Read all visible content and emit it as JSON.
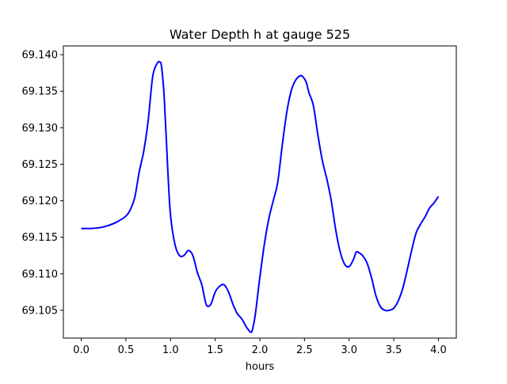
{
  "chart_data": {
    "type": "line",
    "title": "Water Depth h at gauge 525",
    "xlabel": "hours",
    "ylabel": "",
    "xlim": [
      -0.2,
      4.2
    ],
    "ylim": [
      69.1012,
      69.1412
    ],
    "xticks": [
      0.0,
      0.5,
      1.0,
      1.5,
      2.0,
      2.5,
      3.0,
      3.5,
      4.0
    ],
    "xtick_labels": [
      "0.0",
      "0.5",
      "1.0",
      "1.5",
      "2.0",
      "2.5",
      "3.0",
      "3.5",
      "4.0"
    ],
    "yticks": [
      69.105,
      69.11,
      69.115,
      69.12,
      69.125,
      69.13,
      69.135,
      69.14
    ],
    "ytick_labels": [
      "69.105",
      "69.110",
      "69.115",
      "69.120",
      "69.125",
      "69.130",
      "69.135",
      "69.140"
    ],
    "grid": false,
    "series": [
      {
        "color": "#0000ff",
        "x": [
          0.0,
          0.1,
          0.2,
          0.3,
          0.4,
          0.5,
          0.55,
          0.6,
          0.65,
          0.7,
          0.75,
          0.8,
          0.85,
          0.88,
          0.9,
          0.93,
          0.97,
          1.0,
          1.05,
          1.1,
          1.15,
          1.2,
          1.25,
          1.3,
          1.35,
          1.4,
          1.45,
          1.5,
          1.55,
          1.6,
          1.65,
          1.7,
          1.75,
          1.8,
          1.85,
          1.9,
          1.92,
          1.95,
          2.0,
          2.05,
          2.1,
          2.15,
          2.2,
          2.25,
          2.3,
          2.35,
          2.4,
          2.45,
          2.48,
          2.52,
          2.55,
          2.6,
          2.65,
          2.7,
          2.75,
          2.8,
          2.85,
          2.9,
          2.95,
          3.0,
          3.05,
          3.08,
          3.12,
          3.15,
          3.2,
          3.25,
          3.3,
          3.35,
          3.4,
          3.45,
          3.5,
          3.55,
          3.6,
          3.65,
          3.7,
          3.75,
          3.8,
          3.85,
          3.9,
          3.95,
          4.0
        ],
        "y": [
          69.1162,
          69.1162,
          69.1163,
          69.1166,
          69.1171,
          69.1179,
          69.1188,
          69.1205,
          69.124,
          69.1268,
          69.131,
          69.137,
          69.1388,
          69.139,
          69.1383,
          69.134,
          69.124,
          69.118,
          69.114,
          69.1125,
          69.1125,
          69.1132,
          69.1125,
          69.1102,
          69.1085,
          69.1058,
          69.1058,
          69.1075,
          69.1083,
          69.1085,
          69.1075,
          69.1058,
          69.1045,
          69.1038,
          69.1027,
          69.102,
          69.1025,
          69.1045,
          69.1095,
          69.114,
          69.1175,
          69.12,
          69.1225,
          69.1275,
          69.132,
          69.135,
          69.1365,
          69.1371,
          69.137,
          69.1362,
          69.1348,
          69.133,
          69.129,
          69.1255,
          69.123,
          69.12,
          69.116,
          69.113,
          69.1113,
          69.111,
          69.112,
          69.113,
          69.1128,
          69.1125,
          69.1115,
          69.1095,
          69.107,
          69.1055,
          69.105,
          69.105,
          69.1053,
          69.1063,
          69.108,
          69.1105,
          69.1132,
          69.1156,
          69.1168,
          69.1178,
          69.119,
          69.1197,
          69.1206
        ]
      }
    ]
  }
}
